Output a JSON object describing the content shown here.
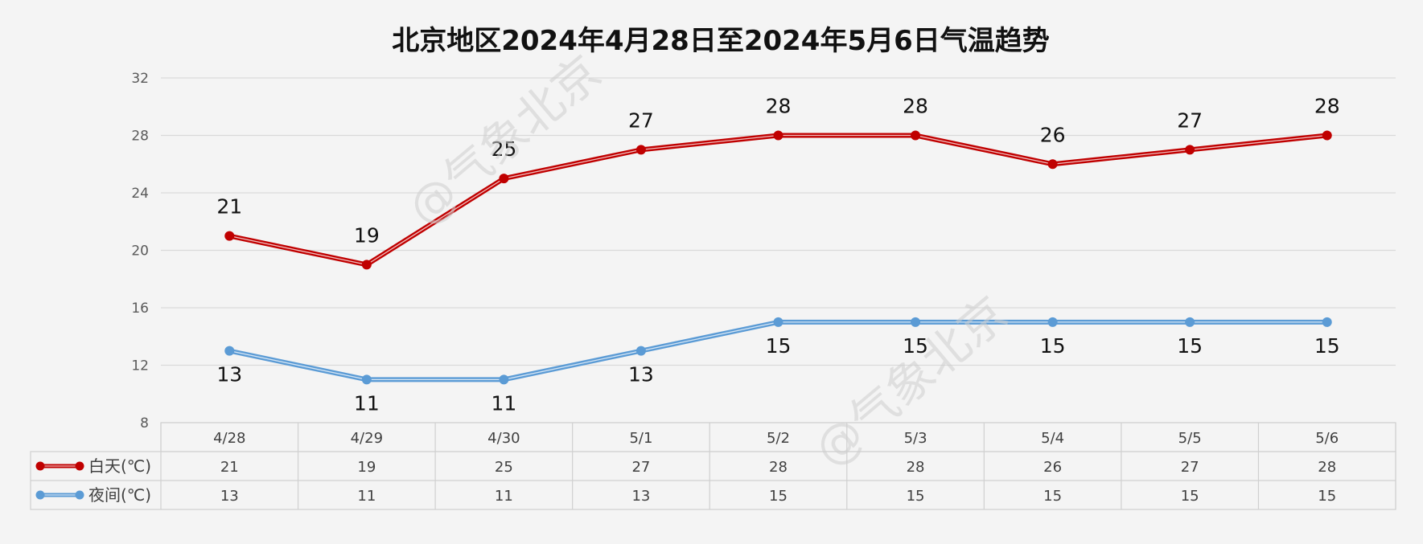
{
  "chart_data": {
    "type": "line",
    "title": "北京地区2024年4月28日至2024年5月6日气温趋势",
    "categories": [
      "4/28",
      "4/29",
      "4/30",
      "5/1",
      "5/2",
      "5/3",
      "5/4",
      "5/5",
      "5/6"
    ],
    "series": [
      {
        "name": "白天(℃)",
        "values": [
          21,
          19,
          25,
          27,
          28,
          28,
          26,
          27,
          28
        ],
        "color": "#c00000",
        "label_position": "above"
      },
      {
        "name": "夜间(℃)",
        "values": [
          13,
          11,
          11,
          13,
          15,
          15,
          15,
          15,
          15
        ],
        "color": "#5b9bd5",
        "label_position": "below"
      }
    ],
    "ylim": [
      8,
      32
    ],
    "yticks": [
      8,
      12,
      16,
      20,
      24,
      28,
      32
    ],
    "grid": true,
    "data_table": true
  },
  "watermark": "@气象北京"
}
